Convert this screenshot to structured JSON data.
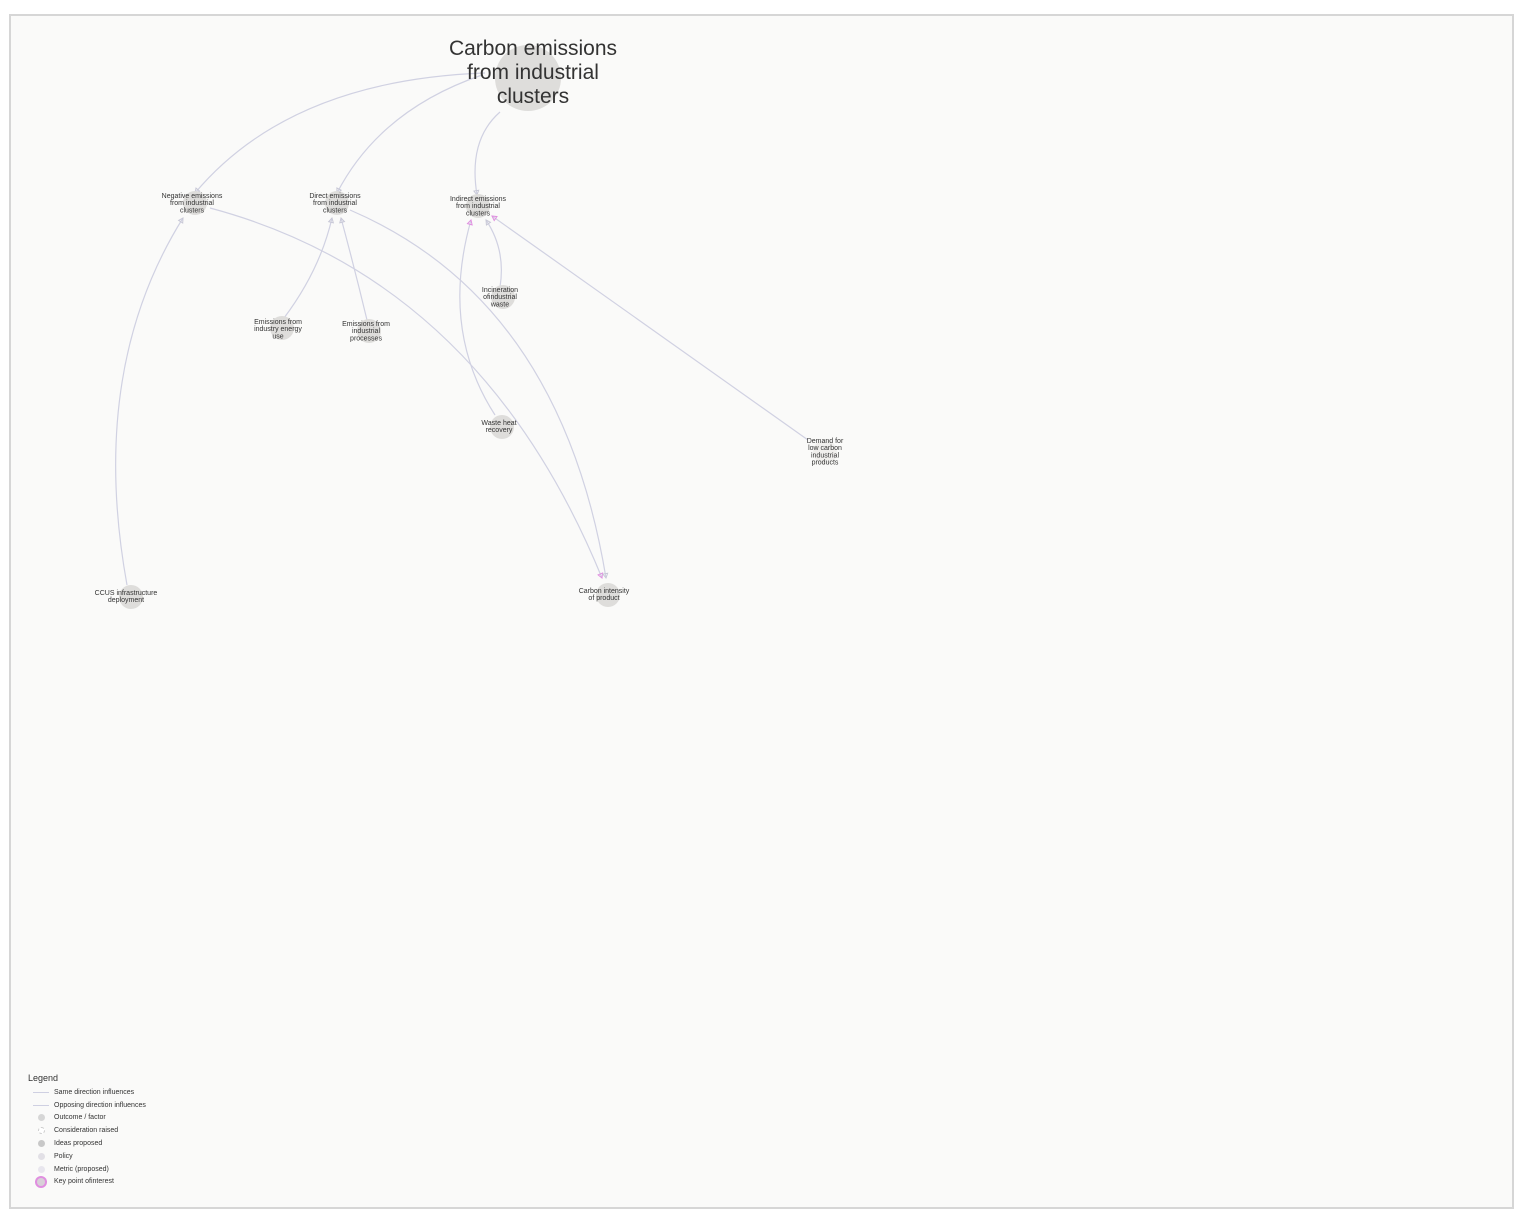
{
  "colors": {
    "edge": "#d0d1e2",
    "node": "#dedddb",
    "key_point": "#e08ee0",
    "background": "#fafaf9"
  },
  "nodes": [
    {
      "id": "main",
      "label": [
        "Carbon emissions",
        "from industrial",
        "clusters"
      ]
    },
    {
      "id": "neg",
      "label": [
        "Negative emissions",
        "from industrial",
        "clusters"
      ]
    },
    {
      "id": "direct",
      "label": [
        "Direct emissions",
        "from industrial",
        "clusters"
      ]
    },
    {
      "id": "indirect",
      "label": [
        "Indirect emissions",
        "from industrial",
        "clusters"
      ]
    },
    {
      "id": "incin",
      "label": [
        "Incineration",
        "ofindustrial",
        "waste"
      ]
    },
    {
      "id": "energy",
      "label": [
        "Emissions from",
        "industry energy",
        "use"
      ]
    },
    {
      "id": "process",
      "label": [
        "Emissions from",
        "industrial",
        "processes"
      ]
    },
    {
      "id": "heat",
      "label": [
        "Waste heat",
        "recovery"
      ]
    },
    {
      "id": "demand",
      "label": [
        "Demand for",
        "low carbon",
        "industrial",
        "products"
      ]
    },
    {
      "id": "ccus",
      "label": [
        "CCUS infrastructure",
        "deployment"
      ]
    },
    {
      "id": "intensity",
      "label": [
        "Carbon intensity",
        "of product"
      ]
    }
  ],
  "edges": [
    {
      "from": "neg",
      "to": "main"
    },
    {
      "from": "direct",
      "to": "main"
    },
    {
      "from": "indirect",
      "to": "main"
    },
    {
      "from": "ccus",
      "to": "neg"
    },
    {
      "from": "energy",
      "to": "direct"
    },
    {
      "from": "process",
      "to": "direct"
    },
    {
      "from": "heat",
      "to": "indirect",
      "key": true
    },
    {
      "from": "incin",
      "to": "indirect"
    },
    {
      "from": "demand",
      "to": "indirect",
      "key": true
    },
    {
      "from": "neg",
      "to": "intensity",
      "key": true
    },
    {
      "from": "direct",
      "to": "intensity"
    }
  ],
  "legend": {
    "title": "Legend",
    "items": [
      {
        "label": "Same direction influences",
        "kind": "line"
      },
      {
        "label": "Opposing direction influences",
        "kind": "line"
      },
      {
        "label": "Outcome / factor",
        "kind": "dot"
      },
      {
        "label": "Consideration raised",
        "kind": "dot-light"
      },
      {
        "label": "Ideas proposed",
        "kind": "dot-dark"
      },
      {
        "label": "Policy",
        "kind": "dot-policy"
      },
      {
        "label": "Metric (proposed)",
        "kind": "dot-metric"
      },
      {
        "label": "Key point ofinterest",
        "kind": "key"
      }
    ]
  }
}
